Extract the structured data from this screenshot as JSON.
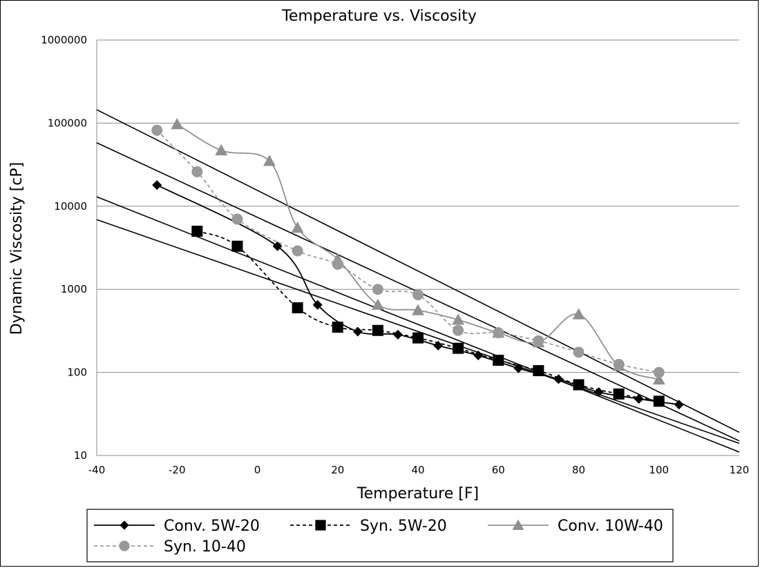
{
  "chart_data": {
    "type": "line",
    "title": "Temperature vs. Viscosity",
    "xlabel": "Temperature [F]",
    "ylabel": "Dynamic Viscosity [cP]",
    "xlim": [
      -40,
      120
    ],
    "ylim": [
      10,
      1000000
    ],
    "yscale": "log",
    "grid": "horizontal",
    "legend_position": "bottom",
    "x_ticks": [
      "-40",
      "-20",
      "0",
      "20",
      "40",
      "60",
      "80",
      "100",
      "120"
    ],
    "y_ticks": [
      "10",
      "100",
      "1000",
      "10000",
      "100000",
      "1000000"
    ],
    "series": [
      {
        "name": "Conv. 5W-20",
        "color": "#000000",
        "dash": "solid",
        "marker": "diamond",
        "x": [
          -25,
          5,
          15,
          25,
          35,
          45,
          55,
          65,
          75,
          85,
          95,
          105
        ],
        "y": [
          18000,
          3300,
          650,
          310,
          285,
          210,
          160,
          112,
          83,
          58,
          48,
          41
        ]
      },
      {
        "name": "Syn. 5W-20",
        "color": "#000000",
        "dash": "dashed",
        "marker": "square",
        "x": [
          -15,
          -5,
          10,
          20,
          30,
          40,
          50,
          60,
          70,
          80,
          90,
          100
        ],
        "y": [
          5000,
          3300,
          600,
          350,
          320,
          260,
          195,
          140,
          105,
          71,
          55,
          45
        ]
      },
      {
        "name": "Conv. 10W-40",
        "color": "#909090",
        "dash": "solid",
        "marker": "triangle",
        "x": [
          -20,
          -9,
          3,
          10,
          20,
          30,
          40,
          50,
          60,
          70,
          80,
          90,
          100
        ],
        "y": [
          97000,
          47000,
          35000,
          5500,
          2300,
          650,
          560,
          430,
          300,
          230,
          500,
          120,
          82
        ]
      },
      {
        "name": "Syn. 10-40",
        "color": "#999999",
        "dash": "dashed",
        "marker": "circle",
        "x": [
          -25,
          -15,
          -5,
          10,
          20,
          30,
          40,
          50,
          60,
          70,
          80,
          90,
          100
        ],
        "y": [
          82000,
          26000,
          7000,
          2900,
          2000,
          1000,
          860,
          320,
          300,
          240,
          175,
          125,
          100
        ]
      }
    ],
    "trendlines": [
      {
        "x": [
          -40,
          120
        ],
        "y": [
          145000,
          19
        ]
      },
      {
        "x": [
          -40,
          120
        ],
        "y": [
          58000,
          15
        ]
      },
      {
        "x": [
          -40,
          120
        ],
        "y": [
          13000,
          11
        ]
      },
      {
        "x": [
          -40,
          120
        ],
        "y": [
          6900,
          14
        ]
      }
    ]
  }
}
